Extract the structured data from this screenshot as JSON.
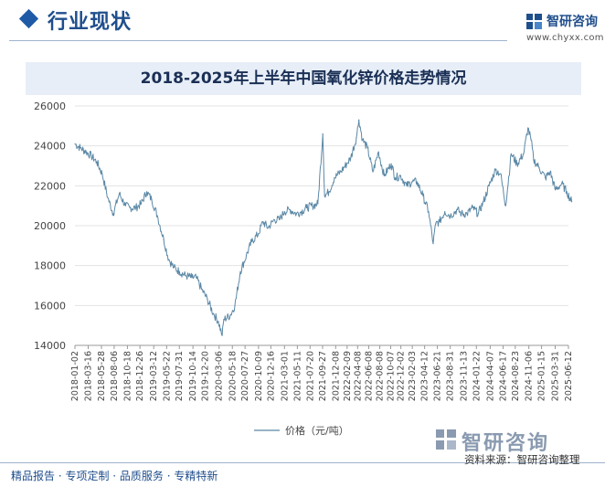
{
  "header": {
    "section_title": "行业现状",
    "logo_name": "智研咨询",
    "logo_url": "www.chyxx.com"
  },
  "footer": {
    "slogan": "精品报告 · 专项定制 · 品质服务 · 专精特新",
    "source": "资料来源：智研咨询整理",
    "watermark": "智研咨询"
  },
  "colors": {
    "brand": "#1f4e8c",
    "line": "#5b88a6",
    "grid": "#e3e3e3"
  },
  "chart_data": {
    "type": "line",
    "title": "2018-2025年上半年中国氧化锌价格走势情况",
    "xlabel": "",
    "ylabel": "",
    "ylim": [
      14000,
      26000
    ],
    "yticks": [
      14000,
      16000,
      18000,
      20000,
      22000,
      24000,
      26000
    ],
    "grid": "horizontal",
    "legend": "bottom-center",
    "xtick_labels": [
      "2018-01-02",
      "2018-03-16",
      "2018-05-28",
      "2018-08-06",
      "2018-10-18",
      "2018-12-26",
      "2019-03-12",
      "2019-05-22",
      "2019-07-31",
      "2019-10-14",
      "2019-12-20",
      "2020-03-06",
      "2020-05-18",
      "2020-07-27",
      "2020-10-09",
      "2020-12-16",
      "2021-03-01",
      "2021-05-11",
      "2021-07-20",
      "2021-09-27",
      "2021-12-08",
      "2022-02-09",
      "2022-04-08",
      "2022-06-08",
      "2022-08-08",
      "2022-10-07",
      "2022-12-02",
      "2023-02-03",
      "2023-04-12",
      "2023-06-21",
      "2023-08-31",
      "2023-11-13",
      "2024-01-22",
      "2024-04-07",
      "2024-06-17",
      "2024-08-23",
      "2024-11-06",
      "2025-01-15",
      "2025-03-31",
      "2025-06-12"
    ],
    "series": [
      {
        "name": "价格（元/吨）",
        "x": [
          "2018-01-02",
          "2018-02-01",
          "2018-03-05",
          "2018-04-02",
          "2018-05-02",
          "2018-06-01",
          "2018-07-02",
          "2018-08-01",
          "2018-09-03",
          "2018-10-08",
          "2018-11-01",
          "2018-12-03",
          "2019-01-02",
          "2019-02-01",
          "2019-03-01",
          "2019-04-01",
          "2019-05-06",
          "2019-06-03",
          "2019-07-01",
          "2019-08-01",
          "2019-09-02",
          "2019-10-08",
          "2019-11-01",
          "2019-12-02",
          "2020-01-02",
          "2020-02-03",
          "2020-03-02",
          "2020-03-23",
          "2020-04-01",
          "2020-05-06",
          "2020-06-01",
          "2020-07-01",
          "2020-08-03",
          "2020-09-01",
          "2020-10-09",
          "2020-11-02",
          "2020-12-01",
          "2021-01-04",
          "2021-02-01",
          "2021-03-01",
          "2021-04-01",
          "2021-05-06",
          "2021-06-01",
          "2021-07-01",
          "2021-08-02",
          "2021-09-01",
          "2021-09-28",
          "2021-10-08",
          "2021-11-01",
          "2021-12-01",
          "2022-01-04",
          "2022-02-07",
          "2022-03-01",
          "2022-04-01",
          "2022-04-15",
          "2022-05-05",
          "2022-06-01",
          "2022-07-01",
          "2022-08-01",
          "2022-09-01",
          "2022-10-10",
          "2022-11-01",
          "2022-12-01",
          "2023-01-03",
          "2023-02-01",
          "2023-03-01",
          "2023-04-03",
          "2023-05-04",
          "2023-05-29",
          "2023-06-12",
          "2023-07-03",
          "2023-08-01",
          "2023-09-01",
          "2023-10-09",
          "2023-11-01",
          "2023-12-01",
          "2024-01-02",
          "2024-02-01",
          "2024-03-01",
          "2024-04-01",
          "2024-05-06",
          "2024-06-03",
          "2024-07-01",
          "2024-08-01",
          "2024-09-02",
          "2024-10-08",
          "2024-11-01",
          "2024-11-18",
          "2024-12-02",
          "2025-01-02",
          "2025-02-05",
          "2025-03-03",
          "2025-04-01",
          "2025-05-06",
          "2025-06-03",
          "2025-06-30"
        ],
        "values": [
          24100,
          23900,
          23700,
          23500,
          23200,
          22600,
          21400,
          20600,
          21600,
          21000,
          20900,
          20900,
          21100,
          21700,
          21300,
          20500,
          19300,
          18300,
          17900,
          17700,
          17500,
          17400,
          17400,
          16800,
          16300,
          15600,
          15200,
          14500,
          15300,
          15500,
          16000,
          17700,
          18500,
          19200,
          19600,
          20200,
          19900,
          20300,
          20300,
          20700,
          20800,
          20600,
          20700,
          20900,
          21000,
          21100,
          24600,
          21500,
          21700,
          22400,
          22700,
          23100,
          23400,
          24400,
          25300,
          24300,
          23900,
          22700,
          23700,
          22500,
          23100,
          22400,
          22500,
          22000,
          22200,
          22200,
          21500,
          20700,
          19100,
          20100,
          20200,
          20700,
          20500,
          20800,
          20600,
          20600,
          20900,
          20600,
          21200,
          22000,
          22800,
          22600,
          21000,
          23600,
          23100,
          23600,
          24900,
          24300,
          23300,
          22900,
          22400,
          22700,
          21800,
          22100,
          21700,
          21200
        ]
      }
    ]
  }
}
